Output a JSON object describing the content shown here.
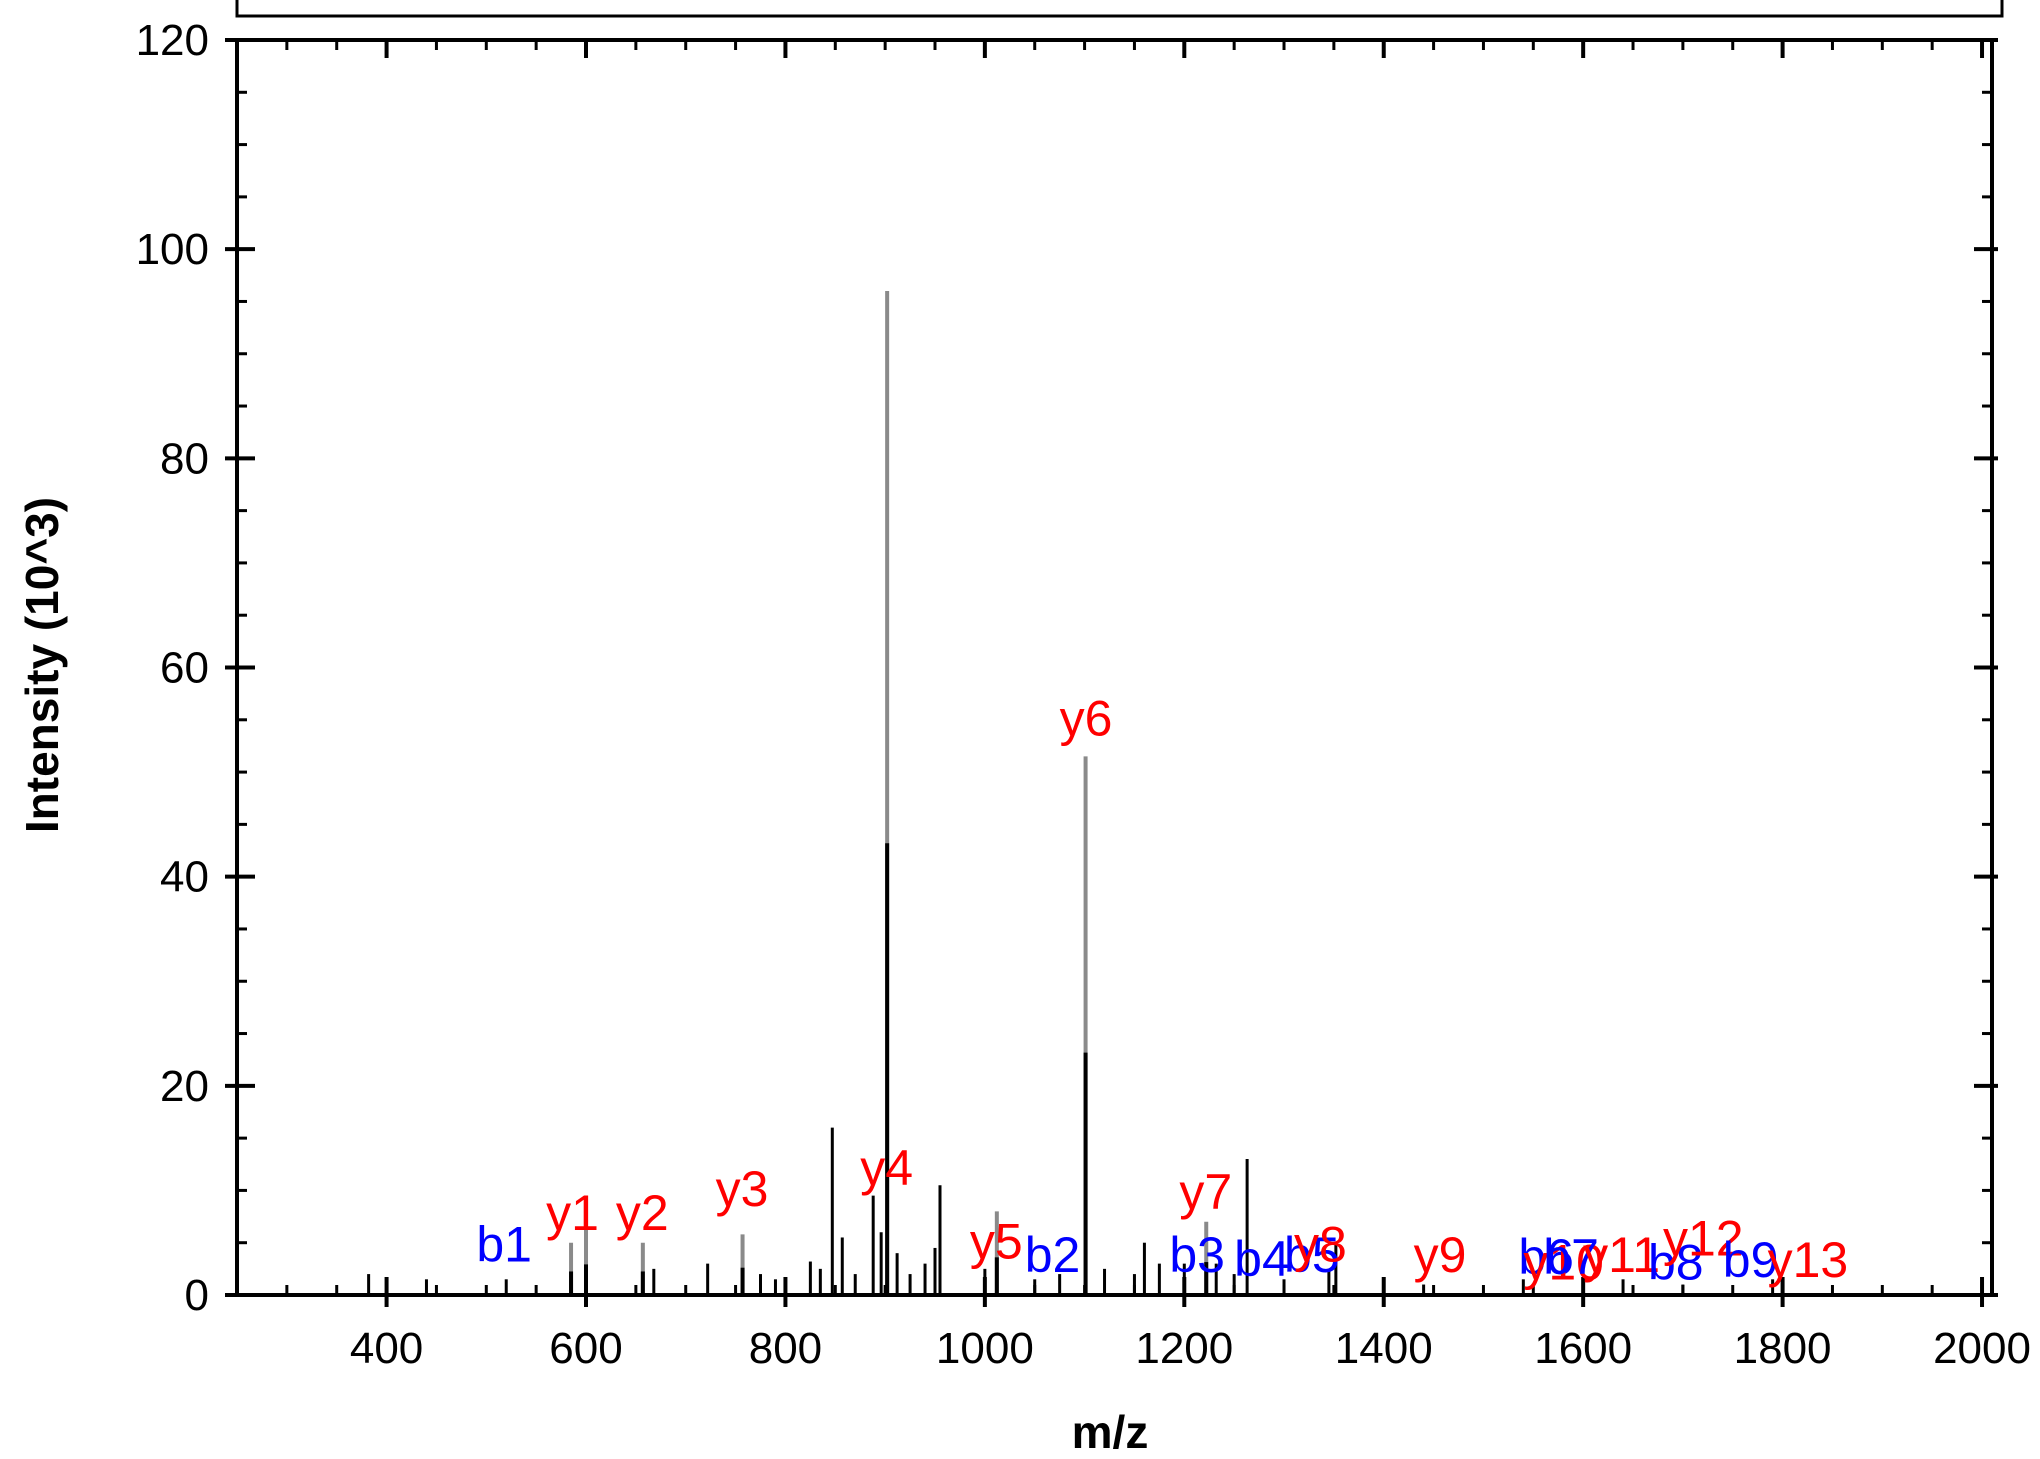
{
  "chart_data": {
    "type": "bar",
    "title": "",
    "xlabel": "m/z",
    "ylabel": "Intensity (10^3)",
    "xlim": [
      250,
      2010
    ],
    "ylim": [
      0,
      120
    ],
    "x_ticks": [
      400,
      600,
      800,
      1000,
      1200,
      1400,
      1600,
      1800,
      2000
    ],
    "y_ticks": [
      0,
      20,
      40,
      60,
      80,
      100,
      120
    ],
    "grid": false,
    "legend": "none",
    "colors": {
      "y_ion": "#ff0000",
      "b_ion": "#0000ff",
      "peak": "#000000",
      "matched_peak": "#8a8a8a"
    },
    "peaks": [
      {
        "mz": 382,
        "intensity": 2.0
      },
      {
        "mz": 440,
        "intensity": 1.5
      },
      {
        "mz": 520,
        "intensity": 1.5
      },
      {
        "mz": 585,
        "intensity": 5.0
      },
      {
        "mz": 600,
        "intensity": 6.5
      },
      {
        "mz": 657,
        "intensity": 5.0
      },
      {
        "mz": 668,
        "intensity": 2.5
      },
      {
        "mz": 722,
        "intensity": 3.0
      },
      {
        "mz": 757,
        "intensity": 5.8
      },
      {
        "mz": 775,
        "intensity": 2.0
      },
      {
        "mz": 790,
        "intensity": 1.5
      },
      {
        "mz": 825,
        "intensity": 3.2
      },
      {
        "mz": 835,
        "intensity": 2.5
      },
      {
        "mz": 847,
        "intensity": 16.0
      },
      {
        "mz": 857,
        "intensity": 5.5
      },
      {
        "mz": 870,
        "intensity": 2.0
      },
      {
        "mz": 888,
        "intensity": 9.5
      },
      {
        "mz": 896,
        "intensity": 6.0
      },
      {
        "mz": 902,
        "intensity": 96.0
      },
      {
        "mz": 912,
        "intensity": 4.0
      },
      {
        "mz": 925,
        "intensity": 2.0
      },
      {
        "mz": 940,
        "intensity": 3.0
      },
      {
        "mz": 950,
        "intensity": 4.5
      },
      {
        "mz": 955,
        "intensity": 10.5
      },
      {
        "mz": 1000,
        "intensity": 2.5
      },
      {
        "mz": 1012,
        "intensity": 8.0
      },
      {
        "mz": 1050,
        "intensity": 1.5
      },
      {
        "mz": 1075,
        "intensity": 2.0
      },
      {
        "mz": 1101,
        "intensity": 51.5
      },
      {
        "mz": 1120,
        "intensity": 2.5
      },
      {
        "mz": 1150,
        "intensity": 2.0
      },
      {
        "mz": 1160,
        "intensity": 5.0
      },
      {
        "mz": 1175,
        "intensity": 3.0
      },
      {
        "mz": 1200,
        "intensity": 3.0
      },
      {
        "mz": 1222,
        "intensity": 7.0
      },
      {
        "mz": 1232,
        "intensity": 3.0
      },
      {
        "mz": 1250,
        "intensity": 2.0
      },
      {
        "mz": 1263,
        "intensity": 13.0
      },
      {
        "mz": 1300,
        "intensity": 1.5
      },
      {
        "mz": 1345,
        "intensity": 2.5
      },
      {
        "mz": 1352,
        "intensity": 5.0
      },
      {
        "mz": 1440,
        "intensity": 1.0
      },
      {
        "mz": 1540,
        "intensity": 1.5
      },
      {
        "mz": 1600,
        "intensity": 1.0
      },
      {
        "mz": 1640,
        "intensity": 1.5
      },
      {
        "mz": 1700,
        "intensity": 1.0
      },
      {
        "mz": 1790,
        "intensity": 1.5
      }
    ],
    "matched_mz": [
      585,
      600,
      657,
      757,
      902,
      1012,
      1101,
      1222
    ],
    "annotations": [
      {
        "text": "b1",
        "series": "b",
        "mz": 490,
        "intensity": 3.2
      },
      {
        "text": "y1",
        "series": "y",
        "mz": 560,
        "intensity": 6.2
      },
      {
        "text": "y2",
        "series": "y",
        "mz": 630,
        "intensity": 6.2
      },
      {
        "text": "y3",
        "series": "y",
        "mz": 730,
        "intensity": 8.5
      },
      {
        "text": "y4",
        "series": "y",
        "mz": 875,
        "intensity": 10.5
      },
      {
        "text": "y5",
        "series": "y",
        "mz": 985,
        "intensity": 3.5
      },
      {
        "text": "b2",
        "series": "b",
        "mz": 1040,
        "intensity": 2.2
      },
      {
        "text": "y6",
        "series": "y",
        "mz": 1075,
        "intensity": 53.5
      },
      {
        "text": "y7",
        "series": "y",
        "mz": 1195,
        "intensity": 8.2
      },
      {
        "text": "b3",
        "series": "b",
        "mz": 1185,
        "intensity": 2.2
      },
      {
        "text": "b4",
        "series": "b",
        "mz": 1250,
        "intensity": 1.8
      },
      {
        "text": "b5",
        "series": "b",
        "mz": 1300,
        "intensity": 2.2
      },
      {
        "text": "y8",
        "series": "y",
        "mz": 1310,
        "intensity": 3.2
      },
      {
        "text": "y9",
        "series": "y",
        "mz": 1430,
        "intensity": 2.2
      },
      {
        "text": "b6",
        "series": "b",
        "mz": 1535,
        "intensity": 2.0
      },
      {
        "text": "y10",
        "series": "y",
        "mz": 1540,
        "intensity": 1.5
      },
      {
        "text": "b7",
        "series": "b",
        "mz": 1560,
        "intensity": 2.0
      },
      {
        "text": "y11",
        "series": "y",
        "mz": 1600,
        "intensity": 2.2
      },
      {
        "text": "b8",
        "series": "b",
        "mz": 1665,
        "intensity": 1.5
      },
      {
        "text": "y12",
        "series": "y",
        "mz": 1680,
        "intensity": 3.8
      },
      {
        "text": "b9",
        "series": "b",
        "mz": 1740,
        "intensity": 1.7
      },
      {
        "text": "y13",
        "series": "y",
        "mz": 1785,
        "intensity": 1.7
      }
    ]
  }
}
